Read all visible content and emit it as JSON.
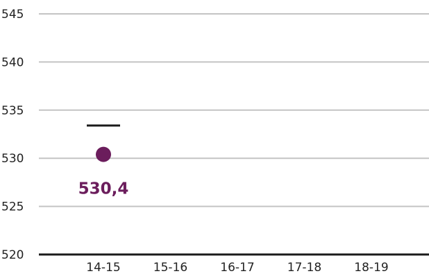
{
  "chart_data": {
    "type": "scatter",
    "categories": [
      "14-15",
      "15-16",
      "16-17",
      "17-18",
      "18-19"
    ],
    "y_ticks": [
      "545",
      "540",
      "535",
      "530",
      "525",
      "520"
    ],
    "ylim": [
      520,
      545
    ],
    "series": [
      {
        "values": [
          530.4,
          null,
          null,
          null,
          null
        ],
        "labels": [
          "530,4",
          null,
          null,
          null,
          null
        ],
        "color": "#6b1d5c"
      }
    ],
    "reference_marks": [
      {
        "category": "14-15",
        "value": 533.4,
        "color": "#1a1a1a"
      }
    ],
    "grid": true,
    "legend": "none"
  }
}
